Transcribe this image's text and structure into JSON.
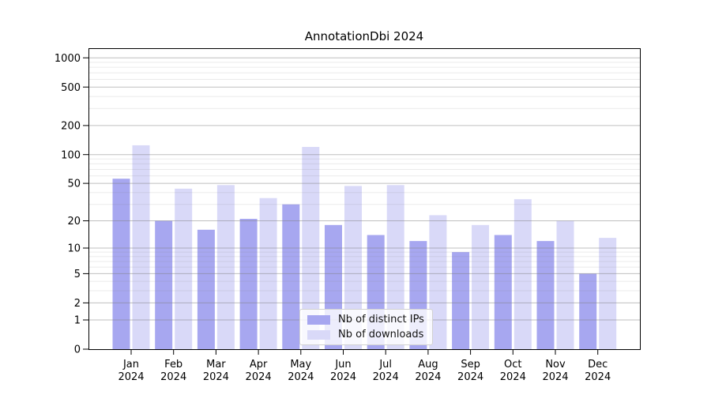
{
  "title": "AnnotationDbi 2024",
  "chart_data": {
    "type": "bar",
    "title": "AnnotationDbi 2024",
    "categories": [
      "Jan",
      "Feb",
      "Mar",
      "Apr",
      "May",
      "Jun",
      "Jul",
      "Aug",
      "Sep",
      "Oct",
      "Nov",
      "Dec"
    ],
    "year": "2024",
    "series": [
      {
        "name": "Nb of distinct IPs",
        "color": "#a7a7f0",
        "values": [
          56,
          20,
          16,
          21,
          30,
          18,
          14,
          12,
          9,
          14,
          12,
          5
        ]
      },
      {
        "name": "Nb of downloads",
        "color": "#d9d9f8",
        "values": [
          125,
          44,
          48,
          35,
          120,
          47,
          48,
          23,
          18,
          34,
          20,
          13
        ]
      }
    ],
    "xlabel": "",
    "ylabel": "",
    "y_scale": "log10(1+y)",
    "y_ticks": [
      0,
      1,
      2,
      5,
      10,
      20,
      50,
      100,
      200,
      500,
      1000
    ],
    "y_minor_multiples": [
      3,
      4,
      6,
      7,
      8,
      9
    ],
    "ylim": [
      0,
      1260
    ],
    "grid": true,
    "gridline_color": "#808080",
    "legend_position": "bottom-center",
    "legend_labels": [
      "Nb of distinct IPs",
      "Nb of downloads"
    ]
  }
}
